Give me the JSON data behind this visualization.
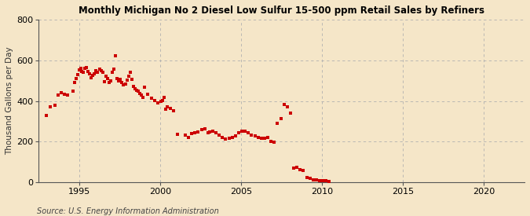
{
  "title": "Monthly Michigan No 2 Diesel Low Sulfur 15-500 ppm Retail Sales by Refiners",
  "ylabel": "Thousand Gallons per Day",
  "source": "Source: U.S. Energy Information Administration",
  "background_color": "#f5e6c8",
  "dot_color": "#cc0000",
  "ylim": [
    0,
    800
  ],
  "yticks": [
    0,
    200,
    400,
    600,
    800
  ],
  "xlim_left": 1992.5,
  "xlim_right": 2022.5,
  "xticks": [
    1995,
    2000,
    2005,
    2010,
    2015,
    2020
  ],
  "data_points": [
    [
      1993.0,
      330
    ],
    [
      1993.2,
      370
    ],
    [
      1993.5,
      380
    ],
    [
      1993.7,
      430
    ],
    [
      1993.9,
      440
    ],
    [
      1994.1,
      435
    ],
    [
      1994.3,
      430
    ],
    [
      1994.6,
      450
    ],
    [
      1994.7,
      490
    ],
    [
      1994.8,
      510
    ],
    [
      1994.9,
      530
    ],
    [
      1995.0,
      555
    ],
    [
      1995.1,
      560
    ],
    [
      1995.15,
      545
    ],
    [
      1995.25,
      540
    ],
    [
      1995.35,
      560
    ],
    [
      1995.45,
      565
    ],
    [
      1995.55,
      545
    ],
    [
      1995.65,
      535
    ],
    [
      1995.75,
      515
    ],
    [
      1995.85,
      525
    ],
    [
      1995.95,
      535
    ],
    [
      1996.05,
      548
    ],
    [
      1996.15,
      542
    ],
    [
      1996.25,
      558
    ],
    [
      1996.35,
      550
    ],
    [
      1996.45,
      542
    ],
    [
      1996.55,
      495
    ],
    [
      1996.65,
      522
    ],
    [
      1996.75,
      512
    ],
    [
      1996.85,
      492
    ],
    [
      1996.95,
      500
    ],
    [
      1997.05,
      542
    ],
    [
      1997.15,
      558
    ],
    [
      1997.25,
      622
    ],
    [
      1997.35,
      512
    ],
    [
      1997.45,
      498
    ],
    [
      1997.55,
      508
    ],
    [
      1997.65,
      492
    ],
    [
      1997.75,
      478
    ],
    [
      1997.85,
      482
    ],
    [
      1997.95,
      502
    ],
    [
      1998.05,
      522
    ],
    [
      1998.15,
      542
    ],
    [
      1998.25,
      508
    ],
    [
      1998.35,
      472
    ],
    [
      1998.45,
      462
    ],
    [
      1998.55,
      452
    ],
    [
      1998.65,
      448
    ],
    [
      1998.75,
      438
    ],
    [
      1998.85,
      428
    ],
    [
      1998.95,
      418
    ],
    [
      1999.05,
      468
    ],
    [
      1999.25,
      432
    ],
    [
      1999.45,
      412
    ],
    [
      1999.65,
      402
    ],
    [
      1999.85,
      392
    ],
    [
      2000.05,
      398
    ],
    [
      2000.15,
      402
    ],
    [
      2000.25,
      418
    ],
    [
      2000.35,
      358
    ],
    [
      2000.45,
      372
    ],
    [
      2000.65,
      362
    ],
    [
      2000.85,
      352
    ],
    [
      2001.05,
      235
    ],
    [
      2001.55,
      232
    ],
    [
      2001.75,
      222
    ],
    [
      2001.95,
      238
    ],
    [
      2002.15,
      242
    ],
    [
      2002.35,
      248
    ],
    [
      2002.55,
      258
    ],
    [
      2002.75,
      262
    ],
    [
      2002.95,
      242
    ],
    [
      2003.05,
      248
    ],
    [
      2003.25,
      252
    ],
    [
      2003.45,
      242
    ],
    [
      2003.65,
      232
    ],
    [
      2003.85,
      222
    ],
    [
      2004.05,
      212
    ],
    [
      2004.25,
      218
    ],
    [
      2004.45,
      222
    ],
    [
      2004.65,
      228
    ],
    [
      2004.85,
      242
    ],
    [
      2005.05,
      252
    ],
    [
      2005.25,
      252
    ],
    [
      2005.45,
      242
    ],
    [
      2005.65,
      232
    ],
    [
      2005.85,
      228
    ],
    [
      2006.05,
      222
    ],
    [
      2006.25,
      218
    ],
    [
      2006.45,
      218
    ],
    [
      2006.65,
      222
    ],
    [
      2006.85,
      202
    ],
    [
      2007.05,
      198
    ],
    [
      2007.25,
      288
    ],
    [
      2007.45,
      312
    ],
    [
      2007.65,
      382
    ],
    [
      2007.85,
      372
    ],
    [
      2008.05,
      342
    ],
    [
      2008.25,
      68
    ],
    [
      2008.45,
      72
    ],
    [
      2008.65,
      62
    ],
    [
      2008.85,
      58
    ],
    [
      2009.05,
      22
    ],
    [
      2009.25,
      18
    ],
    [
      2009.45,
      12
    ],
    [
      2009.65,
      10
    ],
    [
      2009.85,
      6
    ],
    [
      2010.05,
      6
    ],
    [
      2010.25,
      6
    ],
    [
      2010.45,
      5
    ]
  ]
}
